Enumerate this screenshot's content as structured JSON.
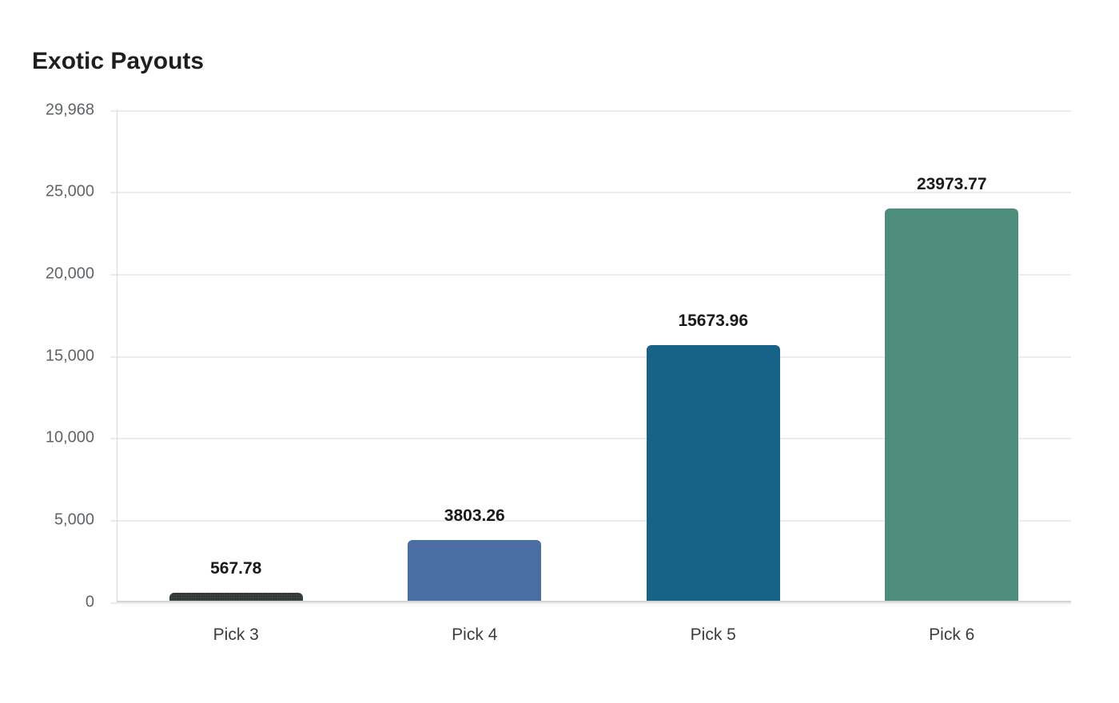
{
  "chart_data": {
    "type": "bar",
    "title": "Exotic Payouts",
    "xlabel": "",
    "ylabel": "",
    "categories": [
      "Pick 3",
      "Pick 4",
      "Pick 5",
      "Pick 6"
    ],
    "values": [
      567.78,
      3803.26,
      15673.96,
      23973.77
    ],
    "value_labels": [
      "567.78",
      "3803.26",
      "15673.96",
      "23973.77"
    ],
    "colors": [
      "#3a3f3f",
      "#4a6da3",
      "#186187",
      "#4e8c7b"
    ],
    "ylim": [
      0,
      29968
    ],
    "yticks": [
      0,
      5000,
      10000,
      15000,
      20000,
      25000,
      29968
    ],
    "ytick_labels": [
      "0",
      "5,000",
      "10,000",
      "15,000",
      "20,000",
      "25,000",
      "29,968"
    ],
    "grid": true,
    "legend": "none"
  }
}
